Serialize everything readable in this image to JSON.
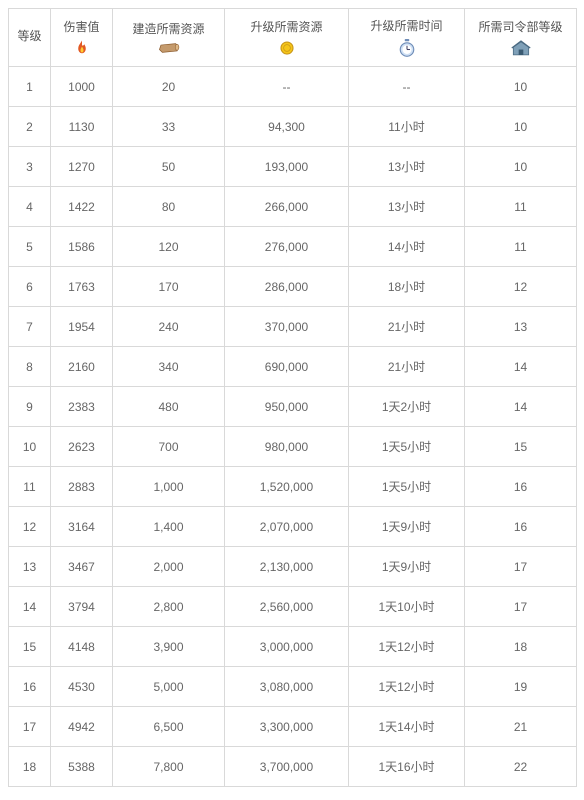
{
  "table": {
    "header": {
      "level": "等级",
      "damage": "伤害值",
      "build_resource": "建造所需资源",
      "upgrade_resource": "升级所需资源",
      "upgrade_time": "升级所需时间",
      "hq_level": "所需司令部等级"
    },
    "colors": {
      "border": "#d9d9d9",
      "text": "#666666",
      "header_text": "#555555",
      "background": "#ffffff"
    },
    "rows": [
      {
        "level": "1",
        "damage": "1000",
        "build": "20",
        "upgrade": "--",
        "time": "--",
        "hq": "10"
      },
      {
        "level": "2",
        "damage": "1130",
        "build": "33",
        "upgrade": "94,300",
        "time": "11小时",
        "hq": "10"
      },
      {
        "level": "3",
        "damage": "1270",
        "build": "50",
        "upgrade": "193,000",
        "time": "13小时",
        "hq": "10"
      },
      {
        "level": "4",
        "damage": "1422",
        "build": "80",
        "upgrade": "266,000",
        "time": "13小时",
        "hq": "11"
      },
      {
        "level": "5",
        "damage": "1586",
        "build": "120",
        "upgrade": "276,000",
        "time": "14小时",
        "hq": "11"
      },
      {
        "level": "6",
        "damage": "1763",
        "build": "170",
        "upgrade": "286,000",
        "time": "18小时",
        "hq": "12"
      },
      {
        "level": "7",
        "damage": "1954",
        "build": "240",
        "upgrade": "370,000",
        "time": "21小时",
        "hq": "13"
      },
      {
        "level": "8",
        "damage": "2160",
        "build": "340",
        "upgrade": "690,000",
        "time": "21小时",
        "hq": "14"
      },
      {
        "level": "9",
        "damage": "2383",
        "build": "480",
        "upgrade": "950,000",
        "time": "1天2小时",
        "hq": "14"
      },
      {
        "level": "10",
        "damage": "2623",
        "build": "700",
        "upgrade": "980,000",
        "time": "1天5小时",
        "hq": "15"
      },
      {
        "level": "11",
        "damage": "2883",
        "build": "1,000",
        "upgrade": "1,520,000",
        "time": "1天5小时",
        "hq": "16"
      },
      {
        "level": "12",
        "damage": "3164",
        "build": "1,400",
        "upgrade": "2,070,000",
        "time": "1天9小时",
        "hq": "16"
      },
      {
        "level": "13",
        "damage": "3467",
        "build": "2,000",
        "upgrade": "2,130,000",
        "time": "1天9小时",
        "hq": "17"
      },
      {
        "level": "14",
        "damage": "3794",
        "build": "2,800",
        "upgrade": "2,560,000",
        "time": "1天10小时",
        "hq": "17"
      },
      {
        "level": "15",
        "damage": "4148",
        "build": "3,900",
        "upgrade": "3,000,000",
        "time": "1天12小时",
        "hq": "18"
      },
      {
        "level": "16",
        "damage": "4530",
        "build": "5,000",
        "upgrade": "3,080,000",
        "time": "1天12小时",
        "hq": "19"
      },
      {
        "level": "17",
        "damage": "4942",
        "build": "6,500",
        "upgrade": "3,300,000",
        "time": "1天14小时",
        "hq": "21"
      },
      {
        "level": "18",
        "damage": "5388",
        "build": "7,800",
        "upgrade": "3,700,000",
        "time": "1天16小时",
        "hq": "22"
      }
    ]
  }
}
